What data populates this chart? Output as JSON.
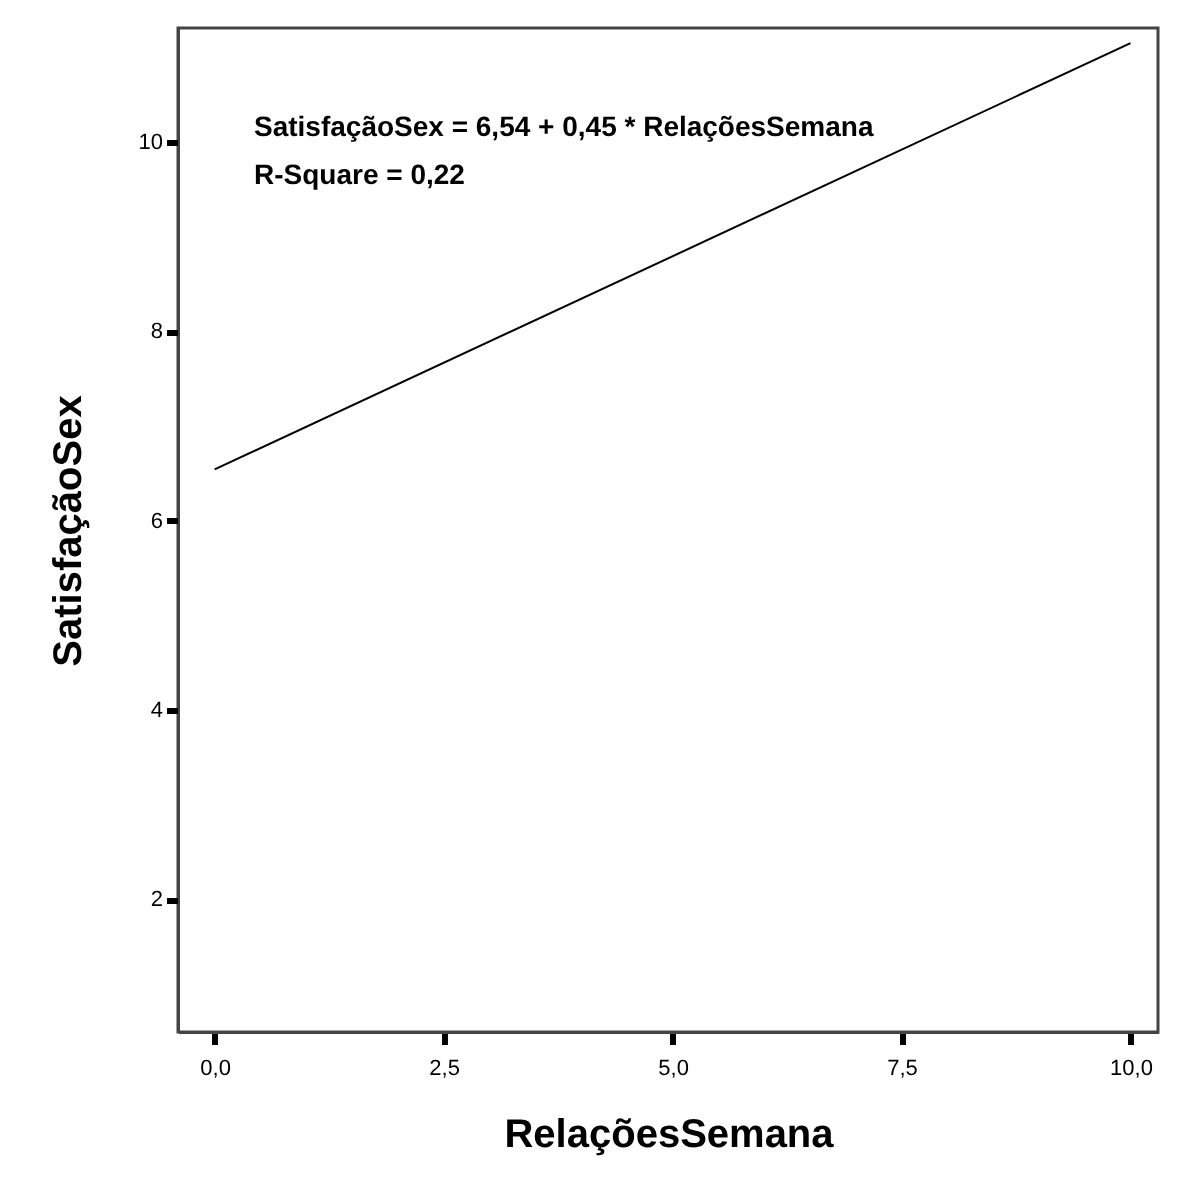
{
  "chart_data": {
    "type": "line",
    "xlabel": "RelaçõesSemana",
    "ylabel": "SatisfaçãoSex",
    "annotations": [
      "SatisfaçãoSex = 6,54 + 0,45 * RelaçõesSemana",
      "R-Square = 0,22"
    ],
    "series": [
      {
        "color": "#000000",
        "x": [
          0,
          10
        ],
        "values": [
          6.54,
          11.04
        ]
      }
    ],
    "xlim": [
      -0.4,
      10.3
    ],
    "ylim": [
      0.6,
      11.2
    ],
    "xticks": [
      {
        "value": 0,
        "label": "0,0"
      },
      {
        "value": 2.5,
        "label": "2,5"
      },
      {
        "value": 5,
        "label": "5,0"
      },
      {
        "value": 7.5,
        "label": "7,5"
      },
      {
        "value": 10,
        "label": "10,0"
      }
    ],
    "yticks": [
      2,
      4,
      6,
      8,
      10
    ],
    "grid": false,
    "marker": "none",
    "line_style": "solid"
  }
}
